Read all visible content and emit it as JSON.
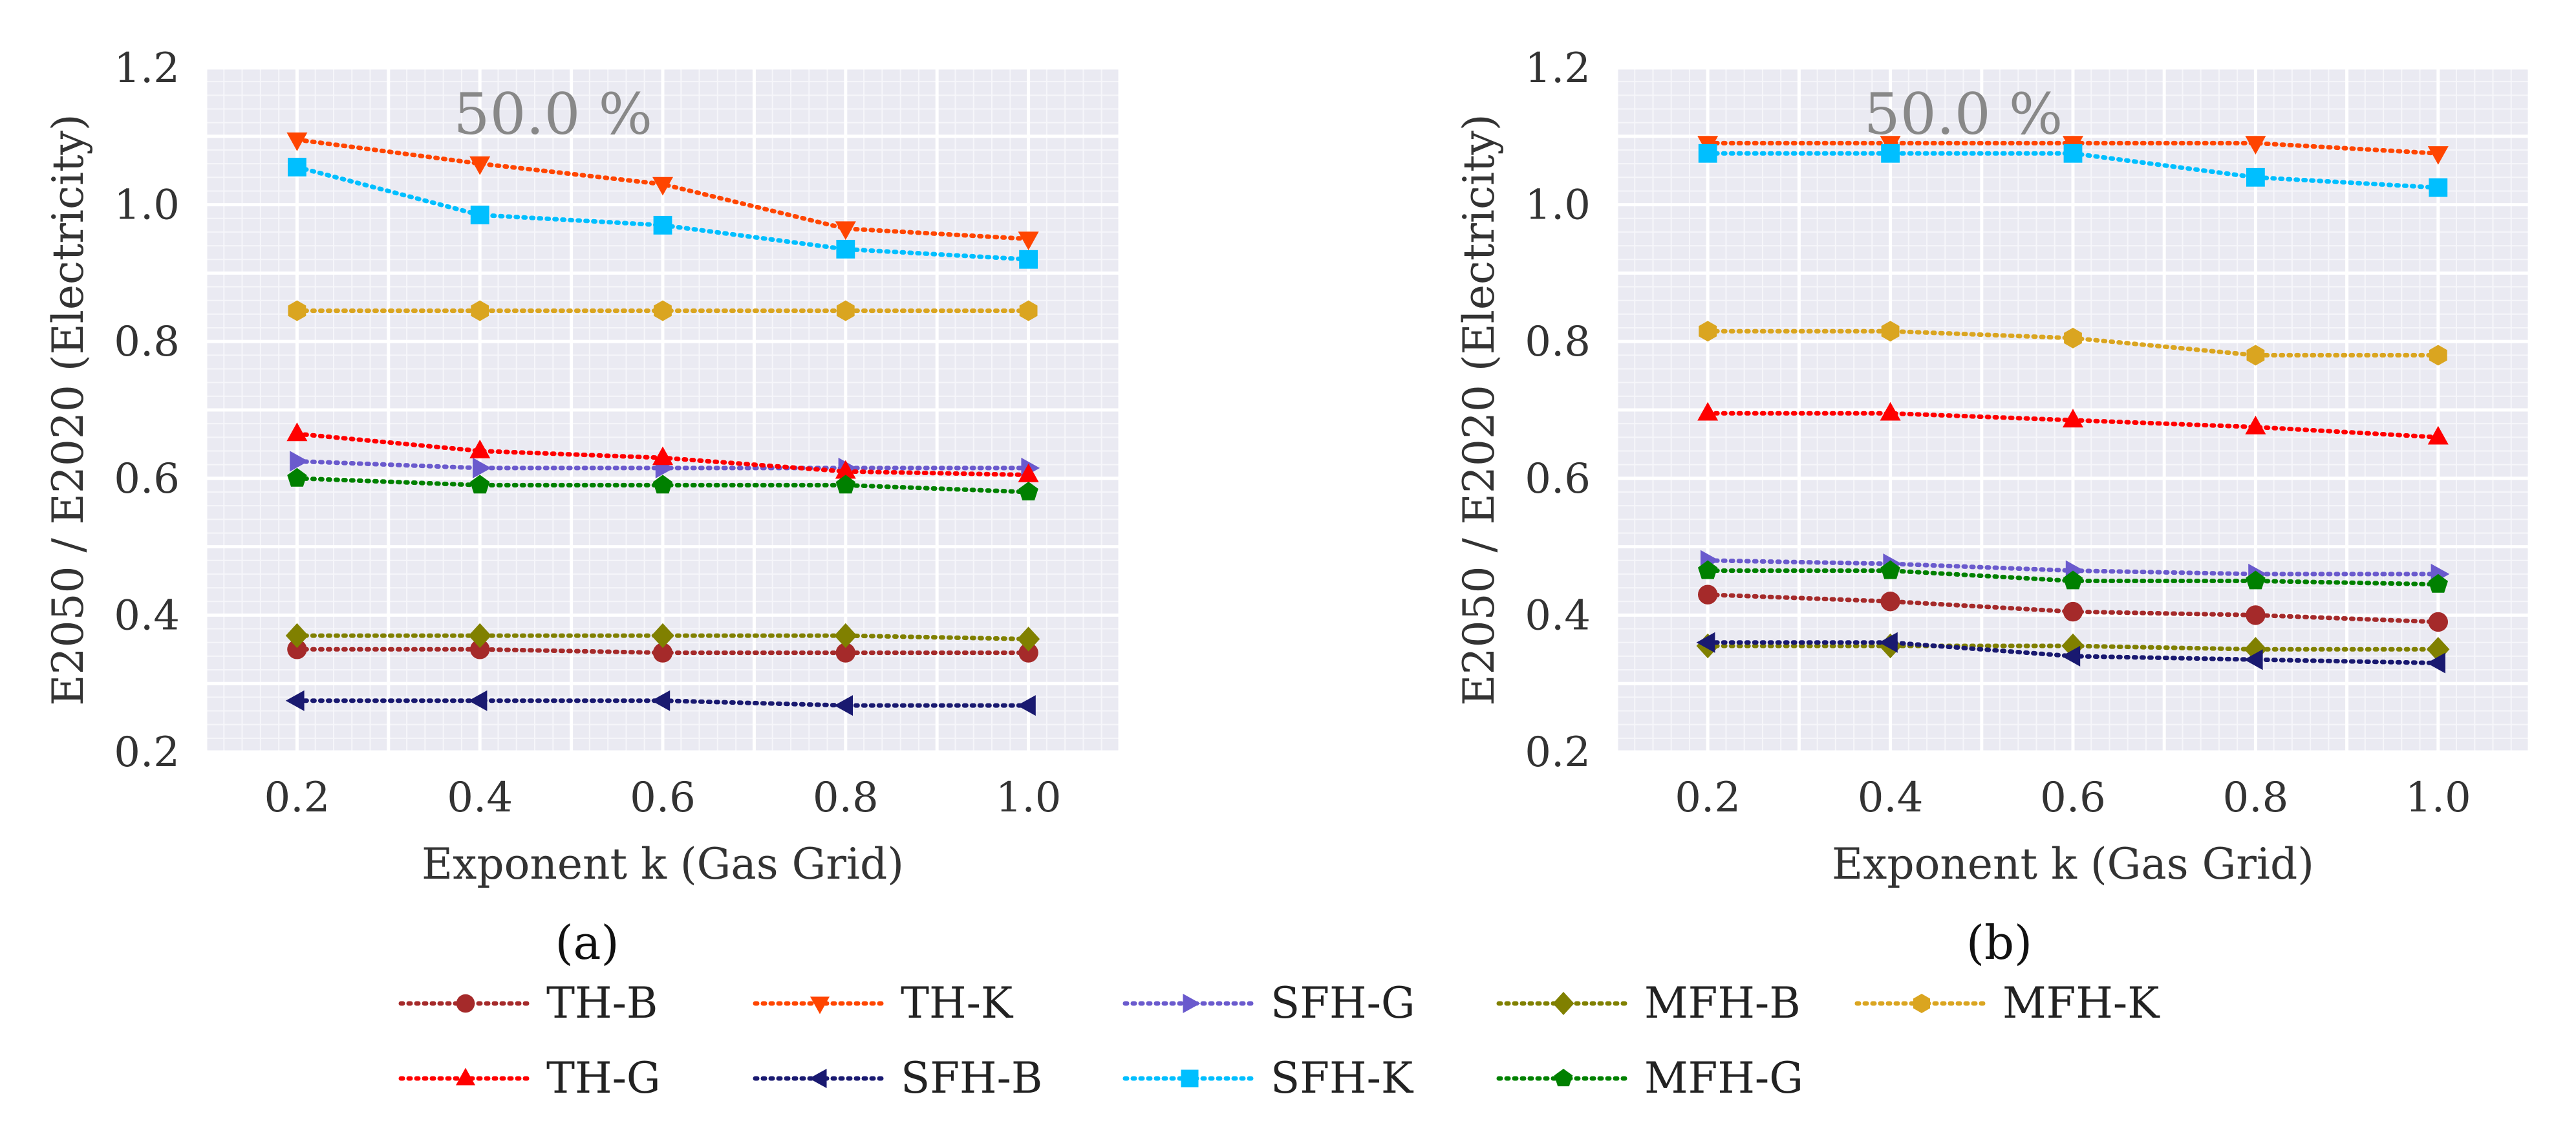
{
  "chart_data": [
    {
      "type": "line",
      "panel_label": "(a)",
      "annotation": "50.0 %",
      "xlabel": "Exponent k (Gas Grid)",
      "ylabel": "E2050 / E2020 (Electricity)",
      "x": [
        0.2,
        0.4,
        0.6,
        0.8,
        1.0
      ],
      "x_tick_labels": [
        "0.2",
        "0.4",
        "0.6",
        "0.8",
        "1.0"
      ],
      "ylim": [
        0.2,
        1.2
      ],
      "y_ticks": [
        0.2,
        0.4,
        0.6,
        0.8,
        1.0,
        1.2
      ],
      "y_tick_labels": [
        "0.2",
        "0.4",
        "0.6",
        "0.8",
        "1.0",
        "1.2"
      ],
      "grid": true,
      "series": [
        {
          "name": "TH-B",
          "values": [
            0.35,
            0.35,
            0.345,
            0.345,
            0.345
          ]
        },
        {
          "name": "TH-K",
          "values": [
            1.095,
            1.06,
            1.03,
            0.965,
            0.95
          ]
        },
        {
          "name": "SFH-G",
          "values": [
            0.625,
            0.615,
            0.615,
            0.615,
            0.615
          ]
        },
        {
          "name": "MFH-B",
          "values": [
            0.37,
            0.37,
            0.37,
            0.37,
            0.365
          ]
        },
        {
          "name": "MFH-K",
          "values": [
            0.845,
            0.845,
            0.845,
            0.845,
            0.845
          ]
        },
        {
          "name": "TH-G",
          "values": [
            0.665,
            0.64,
            0.63,
            0.61,
            0.605
          ]
        },
        {
          "name": "SFH-B",
          "values": [
            0.275,
            0.275,
            0.275,
            0.268,
            0.268
          ]
        },
        {
          "name": "SFH-K",
          "values": [
            1.055,
            0.985,
            0.97,
            0.935,
            0.92
          ]
        },
        {
          "name": "MFH-G",
          "values": [
            0.6,
            0.59,
            0.59,
            0.59,
            0.58
          ]
        }
      ]
    },
    {
      "type": "line",
      "panel_label": "(b)",
      "annotation": "50.0 %",
      "xlabel": "Exponent k (Gas Grid)",
      "ylabel": "E2050 / E2020 (Electricity)",
      "x": [
        0.2,
        0.4,
        0.6,
        0.8,
        1.0
      ],
      "x_tick_labels": [
        "0.2",
        "0.4",
        "0.6",
        "0.8",
        "1.0"
      ],
      "ylim": [
        0.2,
        1.2
      ],
      "y_ticks": [
        0.2,
        0.4,
        0.6,
        0.8,
        1.0,
        1.2
      ],
      "y_tick_labels": [
        "0.2",
        "0.4",
        "0.6",
        "0.8",
        "1.0",
        "1.2"
      ],
      "grid": true,
      "series": [
        {
          "name": "TH-B",
          "values": [
            0.43,
            0.42,
            0.405,
            0.4,
            0.39
          ]
        },
        {
          "name": "TH-K",
          "values": [
            1.09,
            1.09,
            1.09,
            1.09,
            1.075
          ]
        },
        {
          "name": "SFH-G",
          "values": [
            0.48,
            0.475,
            0.465,
            0.46,
            0.46
          ]
        },
        {
          "name": "MFH-B",
          "values": [
            0.355,
            0.355,
            0.355,
            0.35,
            0.35
          ]
        },
        {
          "name": "MFH-K",
          "values": [
            0.815,
            0.815,
            0.805,
            0.78,
            0.78
          ]
        },
        {
          "name": "TH-G",
          "values": [
            0.695,
            0.695,
            0.685,
            0.675,
            0.66
          ]
        },
        {
          "name": "SFH-B",
          "values": [
            0.36,
            0.36,
            0.34,
            0.335,
            0.33
          ]
        },
        {
          "name": "SFH-K",
          "values": [
            1.075,
            1.075,
            1.075,
            1.04,
            1.025
          ]
        },
        {
          "name": "MFH-G",
          "values": [
            0.465,
            0.465,
            0.45,
            0.45,
            0.445
          ]
        }
      ]
    }
  ],
  "legend": {
    "rows": [
      [
        "TH-B",
        "TH-K",
        "SFH-G",
        "MFH-B",
        "MFH-K"
      ],
      [
        "TH-G",
        "SFH-B",
        "SFH-K",
        "MFH-G"
      ]
    ]
  },
  "series_styles": {
    "TH-B": {
      "color": "#a52a2a",
      "marker": "circle"
    },
    "TH-K": {
      "color": "#ff4500",
      "marker": "triangle-down"
    },
    "SFH-G": {
      "color": "#6a5acd",
      "marker": "triangle-right"
    },
    "MFH-B": {
      "color": "#808000",
      "marker": "diamond"
    },
    "MFH-K": {
      "color": "#daa520",
      "marker": "hexagon"
    },
    "TH-G": {
      "color": "#ff0000",
      "marker": "triangle-up"
    },
    "SFH-B": {
      "color": "#191970",
      "marker": "triangle-left"
    },
    "SFH-K": {
      "color": "#00bfff",
      "marker": "square"
    },
    "MFH-G": {
      "color": "#008000",
      "marker": "pentagon"
    }
  },
  "colors": {
    "plot_background": "#eaeaf2",
    "grid_major": "#ffffff",
    "grid_minor": "#f6f6fa"
  }
}
